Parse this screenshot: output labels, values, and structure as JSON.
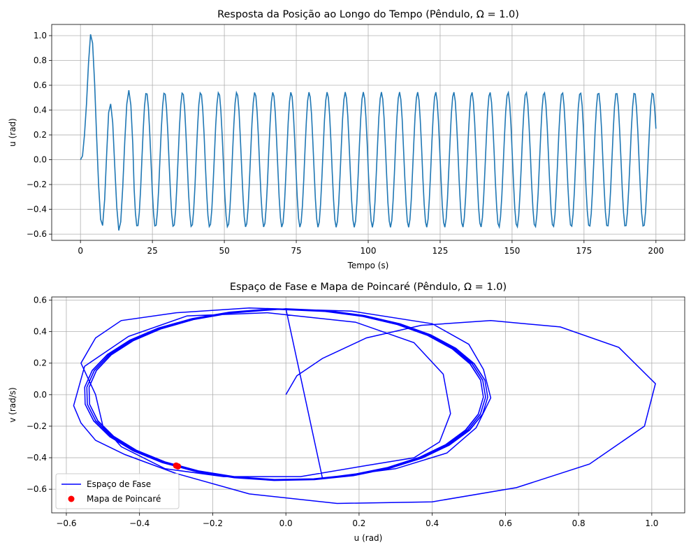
{
  "chart_data": [
    {
      "type": "line",
      "title": "Resposta da Posição ao Longo do Tempo (Pêndulo, Ω = 1.0)",
      "xlabel": "Tempo (s)",
      "ylabel": "u (rad)",
      "xlim": [
        -10,
        210
      ],
      "ylim": [
        -0.65,
        1.09
      ],
      "xticks": [
        0,
        25,
        50,
        75,
        100,
        125,
        150,
        175,
        200
      ],
      "yticks": [
        -0.6,
        -0.4,
        -0.2,
        0.0,
        0.2,
        0.4,
        0.6,
        0.8,
        1.0
      ],
      "xtick_labels": [
        "0",
        "25",
        "50",
        "75",
        "100",
        "125",
        "150",
        "175",
        "200"
      ],
      "ytick_labels": [
        "−0.6",
        "−0.4",
        "−0.2",
        "0.0",
        "0.2",
        "0.4",
        "0.6",
        "0.8",
        "1.0"
      ],
      "grid": true,
      "series": [
        {
          "color": "#1f77b4",
          "x": [
            0,
            0.7,
            1.4,
            2.1,
            2.8,
            3.5,
            4.2,
            4.9,
            5.6,
            6.3,
            7.0,
            7.7,
            8.4,
            9.1,
            9.8,
            10.5,
            11.2,
            11.9,
            12.6,
            13.3,
            14.0,
            14.7,
            15.4,
            16.1,
            16.8,
            17.5,
            18.2
          ],
          "y": [
            0.0,
            0.03,
            0.2,
            0.45,
            0.78,
            1.01,
            0.94,
            0.62,
            0.2,
            -0.2,
            -0.48,
            -0.53,
            -0.32,
            0.05,
            0.38,
            0.45,
            0.3,
            -0.05,
            -0.38,
            -0.57,
            -0.5,
            -0.22,
            0.15,
            0.45,
            0.56,
            0.44,
            0.12
          ],
          "steady_state": {
            "t_start": 18.2,
            "t_end": 200,
            "amplitude": 0.545,
            "period": 6.2832,
            "phase": 0.0,
            "end_value": 0.25
          }
        }
      ]
    },
    {
      "type": "line",
      "title": "Espaço de Fase e Mapa de Poincaré (Pêndulo, Ω = 1.0)",
      "xlabel": "u (rad)",
      "ylabel": "v (rad/s)",
      "xlim": [
        -0.64,
        1.09
      ],
      "ylim": [
        -0.75,
        0.62
      ],
      "xticks": [
        -0.6,
        -0.4,
        -0.2,
        0.0,
        0.2,
        0.4,
        0.6,
        0.8,
        1.0
      ],
      "yticks": [
        -0.6,
        -0.4,
        -0.2,
        0.0,
        0.2,
        0.4,
        0.6
      ],
      "xtick_labels": [
        "−0.6",
        "−0.4",
        "−0.2",
        "0.0",
        "0.2",
        "0.4",
        "0.6",
        "0.8",
        "1.0"
      ],
      "ytick_labels": [
        "−0.6",
        "−0.4",
        "−0.2",
        "0.0",
        "0.2",
        "0.4",
        "0.6"
      ],
      "grid": true,
      "legend_position": "lower-left",
      "series": [
        {
          "name": "Espaço de Fase",
          "color": "#0000ff",
          "u": [
            0.0,
            0.03,
            0.1,
            0.22,
            0.37,
            0.56,
            0.75,
            0.91,
            1.01,
            0.98,
            0.83,
            0.63,
            0.4,
            0.14,
            -0.1,
            -0.3,
            -0.44,
            -0.52,
            -0.56,
            -0.58,
            -0.55,
            -0.43,
            -0.27,
            -0.05,
            0.19,
            0.35,
            0.43,
            0.45,
            0.42,
            0.35,
            0.22,
            0.04,
            -0.17,
            -0.33,
            -0.45,
            -0.5,
            -0.52,
            -0.56,
            -0.52,
            -0.45,
            -0.3,
            -0.1,
            0.18,
            0.4,
            0.5,
            0.54,
            0.56,
            0.52,
            0.44,
            0.3,
            0.1
          ],
          "v": [
            0.0,
            0.12,
            0.23,
            0.36,
            0.44,
            0.47,
            0.43,
            0.3,
            0.07,
            -0.2,
            -0.44,
            -0.59,
            -0.68,
            -0.69,
            -0.63,
            -0.5,
            -0.38,
            -0.29,
            -0.18,
            -0.07,
            0.18,
            0.37,
            0.5,
            0.52,
            0.46,
            0.33,
            0.13,
            -0.12,
            -0.3,
            -0.4,
            -0.45,
            -0.52,
            -0.52,
            -0.47,
            -0.33,
            -0.2,
            0.0,
            0.2,
            0.36,
            0.47,
            0.52,
            0.55,
            0.53,
            0.45,
            0.32,
            0.16,
            -0.02,
            -0.21,
            -0.37,
            -0.47,
            -0.53
          ]
        },
        {
          "name": "Mapa de Poincaré",
          "color": "#ff0000",
          "type": "scatter",
          "points": [
            [
              -0.3,
              -0.45
            ],
            [
              -0.295,
              -0.455
            ]
          ]
        }
      ]
    }
  ]
}
